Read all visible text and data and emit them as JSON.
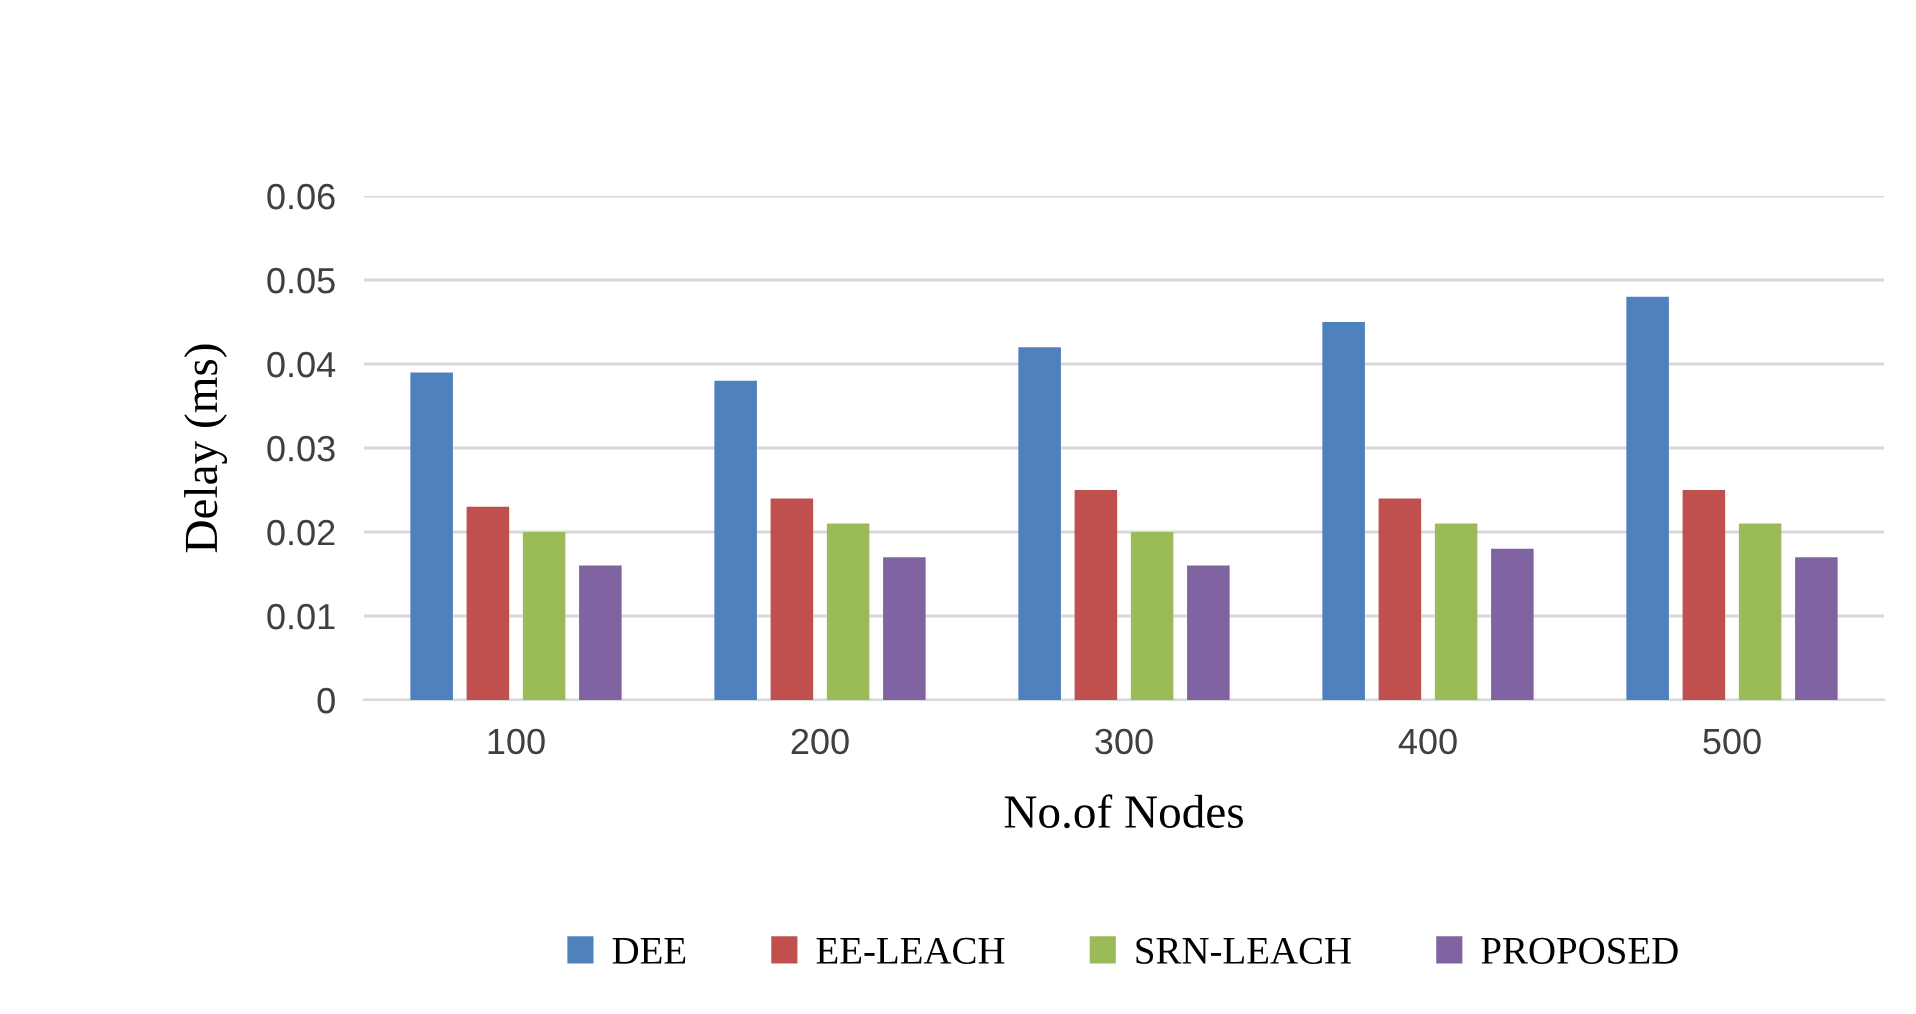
{
  "chart_data": {
    "type": "bar",
    "xlabel": "No.of Nodes",
    "ylabel": "Delay (ms)",
    "categories": [
      "100",
      "200",
      "300",
      "400",
      "500"
    ],
    "series": [
      {
        "name": "DEE",
        "color": "#4f81bd",
        "values": [
          0.039,
          0.038,
          0.042,
          0.045,
          0.048
        ]
      },
      {
        "name": "EE-LEACH",
        "color": "#c0504d",
        "values": [
          0.023,
          0.024,
          0.025,
          0.024,
          0.025
        ]
      },
      {
        "name": "SRN-LEACH",
        "color": "#9bbb59",
        "values": [
          0.02,
          0.021,
          0.02,
          0.021,
          0.021
        ]
      },
      {
        "name": "PROPOSED",
        "color": "#8064a2",
        "values": [
          0.016,
          0.017,
          0.016,
          0.018,
          0.017
        ]
      }
    ],
    "ylim": [
      0,
      0.06
    ],
    "yticks": [
      0,
      0.01,
      0.02,
      0.03,
      0.04,
      0.05,
      0.06
    ],
    "grid": "y",
    "legend": "bottom"
  }
}
